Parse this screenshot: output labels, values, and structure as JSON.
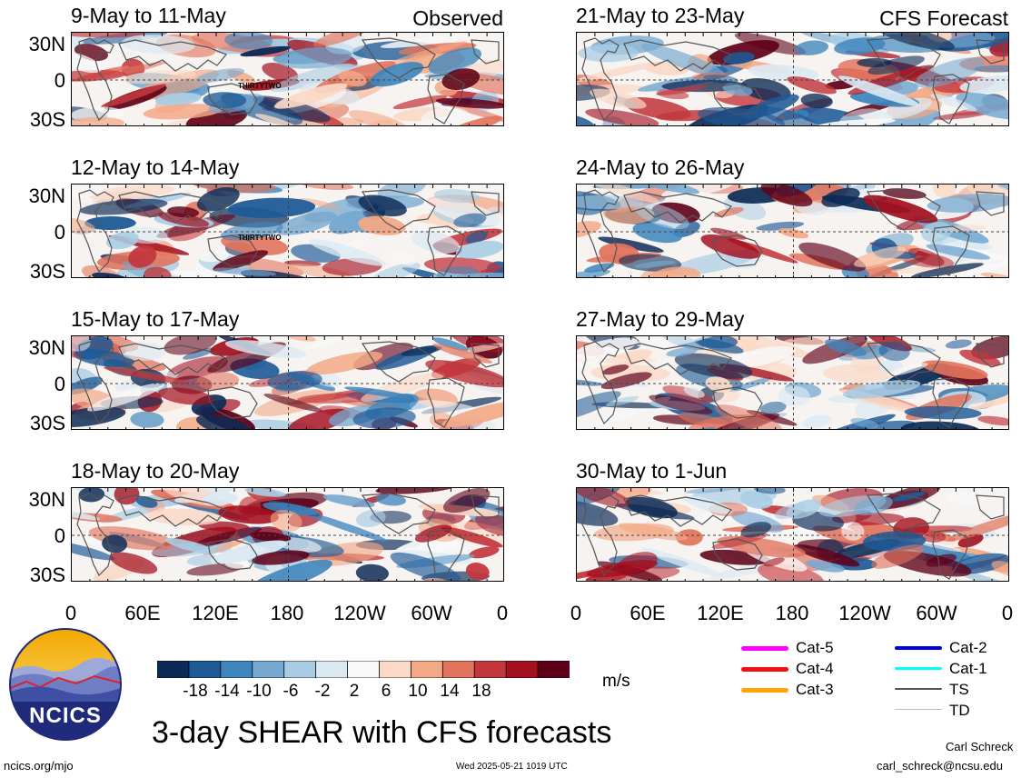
{
  "figure_title": "3-day SHEAR with CFS forecasts",
  "tags": {
    "observed": "Observed",
    "forecast": "CFS Forecast"
  },
  "observed_panels": [
    {
      "title": "9-May to 11-May",
      "storm": "THIRTYTWO"
    },
    {
      "title": "12-May to 14-May",
      "storm": "THIRTYTWO"
    },
    {
      "title": "15-May to 17-May"
    },
    {
      "title": "18-May to 20-May"
    }
  ],
  "forecast_panels": [
    {
      "title": "21-May to 23-May"
    },
    {
      "title": "24-May to 26-May"
    },
    {
      "title": "27-May to 29-May"
    },
    {
      "title": "30-May to 1-Jun"
    }
  ],
  "lat_labels": [
    "30N",
    "0",
    "30S"
  ],
  "lon_labels": [
    "0",
    "60E",
    "120E",
    "180",
    "120W",
    "60W",
    "0"
  ],
  "colorbar": {
    "unit": "m/s",
    "labels": [
      "-18",
      "-14",
      "-10",
      "-6",
      "-2",
      "2",
      "6",
      "10",
      "14",
      "18"
    ],
    "colors": [
      "#0b2a55",
      "#1e5a96",
      "#3f86bd",
      "#76a9d1",
      "#a9cde4",
      "#dbe9f3",
      "#f8f8f8",
      "#fbd9c6",
      "#f3a886",
      "#e2735c",
      "#c2363c",
      "#a3101f",
      "#5e0017"
    ]
  },
  "legend": [
    {
      "label": "Cat-5",
      "color": "#ff00ff"
    },
    {
      "label": "Cat-4",
      "color": "#ee1111"
    },
    {
      "label": "Cat-3",
      "color": "#ffa500"
    },
    {
      "label": "Cat-2",
      "color": "#0000dd"
    },
    {
      "label": "Cat-1",
      "color": "#00ffff"
    },
    {
      "label": "TS",
      "color": "#555555"
    },
    {
      "label": "TD",
      "color": "#bbbbbb"
    }
  ],
  "logo_text": "NCICS",
  "footer": {
    "url": "ncics.org/mjo",
    "timestamp": "Wed 2025-05-21 1019 UTC",
    "author": "Carl Schreck",
    "email": "carl_schreck@ncsu.edu"
  }
}
